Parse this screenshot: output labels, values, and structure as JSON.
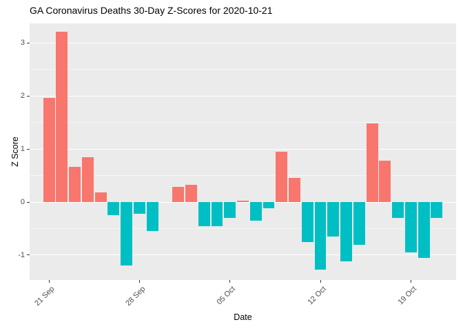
{
  "chart_data": {
    "type": "bar",
    "title": "GA Coronavirus Deaths 30-Day Z-Scores for 2020-10-21",
    "xlabel": "Date",
    "ylabel": "Z Score",
    "ylim": [
      -1.47,
      3.37
    ],
    "y_major_ticks": [
      -1,
      0,
      1,
      2,
      3
    ],
    "y_minor_ticks": [
      -0.5,
      0.5,
      1.5,
      2.5
    ],
    "x_ticks": [
      {
        "label": "21 Sep",
        "day": 0
      },
      {
        "label": "28 Sep",
        "day": 7
      },
      {
        "label": "05 Oct",
        "day": 14
      },
      {
        "label": "12 Oct",
        "day": 21
      },
      {
        "label": "19 Oct",
        "day": 28
      }
    ],
    "x_domain_days": [
      -1.5,
      31.5
    ],
    "bar_width_days": 0.9,
    "legend_position": "none",
    "grid": true,
    "colors": {
      "positive": "#F8766D",
      "negative": "#00BFC4",
      "panel_bg": "#EBEBEB",
      "grid": "#FFFFFF",
      "tick_text": "#4D4D4D"
    },
    "points": [
      {
        "date": "2020-09-21",
        "value": 1.97
      },
      {
        "date": "2020-09-22",
        "value": 3.22
      },
      {
        "date": "2020-09-23",
        "value": 0.67
      },
      {
        "date": "2020-09-24",
        "value": 0.84
      },
      {
        "date": "2020-09-25",
        "value": 0.18
      },
      {
        "date": "2020-09-26",
        "value": -0.25
      },
      {
        "date": "2020-09-27",
        "value": -1.2
      },
      {
        "date": "2020-09-28",
        "value": -0.22
      },
      {
        "date": "2020-09-29",
        "value": -0.55
      },
      {
        "date": "2020-09-30",
        "value": 0.0
      },
      {
        "date": "2020-10-01",
        "value": 0.29
      },
      {
        "date": "2020-10-02",
        "value": 0.33
      },
      {
        "date": "2020-10-03",
        "value": -0.45
      },
      {
        "date": "2020-10-04",
        "value": -0.46
      },
      {
        "date": "2020-10-05",
        "value": -0.3
      },
      {
        "date": "2020-10-06",
        "value": 0.02
      },
      {
        "date": "2020-10-07",
        "value": -0.35
      },
      {
        "date": "2020-10-08",
        "value": -0.12
      },
      {
        "date": "2020-10-09",
        "value": 0.95
      },
      {
        "date": "2020-10-10",
        "value": 0.45
      },
      {
        "date": "2020-10-11",
        "value": -0.75
      },
      {
        "date": "2020-10-12",
        "value": -1.27
      },
      {
        "date": "2020-10-13",
        "value": -0.65
      },
      {
        "date": "2020-10-14",
        "value": -1.12
      },
      {
        "date": "2020-10-15",
        "value": -0.8
      },
      {
        "date": "2020-10-16",
        "value": 1.48
      },
      {
        "date": "2020-10-17",
        "value": 0.78
      },
      {
        "date": "2020-10-18",
        "value": -0.3
      },
      {
        "date": "2020-10-19",
        "value": -0.95
      },
      {
        "date": "2020-10-20",
        "value": -1.05
      },
      {
        "date": "2020-10-21",
        "value": -0.3
      }
    ]
  }
}
